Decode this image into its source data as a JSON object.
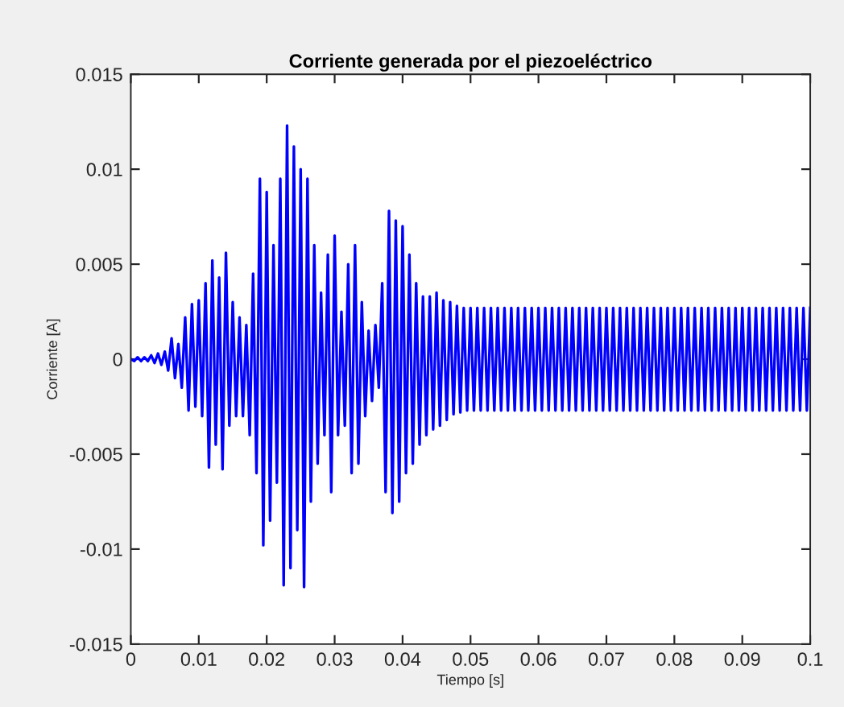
{
  "chart_data": {
    "type": "line",
    "title": "Corriente generada por el piezoeléctrico",
    "xlabel": "Tiempo [s]",
    "ylabel": "Corriente [A]",
    "xlim": [
      0,
      0.1
    ],
    "ylim": [
      -0.015,
      0.015
    ],
    "xticks": [
      0,
      0.01,
      0.02,
      0.03,
      0.04,
      0.05,
      0.06,
      0.07,
      0.08,
      0.09,
      0.1
    ],
    "yticks": [
      -0.015,
      -0.01,
      -0.005,
      0,
      0.005,
      0.01,
      0.015
    ],
    "grid": false,
    "marker": "none",
    "line_style": "solid",
    "series": [
      {
        "color": "#0000ff",
        "x": [
          0,
          0.0005,
          0.001,
          0.0015,
          0.002,
          0.0025,
          0.003,
          0.0035,
          0.004,
          0.0045,
          0.005,
          0.0055,
          0.006,
          0.0065,
          0.007,
          0.0075,
          0.008,
          0.0085,
          0.009,
          0.0095,
          0.01,
          0.0105,
          0.011,
          0.0115,
          0.012,
          0.0125,
          0.013,
          0.0135,
          0.014,
          0.0145,
          0.015,
          0.0155,
          0.016,
          0.0165,
          0.017,
          0.0175,
          0.018,
          0.0185,
          0.019,
          0.0195,
          0.02,
          0.0205,
          0.021,
          0.0215,
          0.022,
          0.0225,
          0.023,
          0.0235,
          0.024,
          0.0245,
          0.025,
          0.0255,
          0.026,
          0.0265,
          0.027,
          0.0275,
          0.028,
          0.0285,
          0.029,
          0.0295,
          0.03,
          0.0305,
          0.031,
          0.0315,
          0.032,
          0.0325,
          0.033,
          0.0335,
          0.034,
          0.0345,
          0.035,
          0.0355,
          0.036,
          0.0365,
          0.037,
          0.0375,
          0.038,
          0.0385,
          0.039,
          0.0395,
          0.04,
          0.0405,
          0.041,
          0.0415,
          0.042,
          0.0425,
          0.043,
          0.0435,
          0.044,
          0.0445,
          0.045,
          0.0455,
          0.046,
          0.0465,
          0.047,
          0.0475,
          0.048,
          0.0485,
          0.049,
          0.0495,
          0.05,
          0.0505,
          0.051,
          0.0515,
          0.052,
          0.0525,
          0.053,
          0.0535,
          0.054,
          0.0545,
          0.055,
          0.0555,
          0.056,
          0.0565,
          0.057,
          0.0575,
          0.058,
          0.0585,
          0.059,
          0.0595,
          0.06,
          0.0605,
          0.061,
          0.0615,
          0.062,
          0.0625,
          0.063,
          0.0635,
          0.064,
          0.0645,
          0.065,
          0.0655,
          0.066,
          0.0665,
          0.067,
          0.0675,
          0.068,
          0.0685,
          0.069,
          0.0695,
          0.07,
          0.0705,
          0.071,
          0.0715,
          0.072,
          0.0725,
          0.073,
          0.0735,
          0.074,
          0.0745,
          0.075,
          0.0755,
          0.076,
          0.0765,
          0.077,
          0.0775,
          0.078,
          0.0785,
          0.079,
          0.0795,
          0.08,
          0.0805,
          0.081,
          0.0815,
          0.082,
          0.0825,
          0.083,
          0.0835,
          0.084,
          0.0845,
          0.085,
          0.0855,
          0.086,
          0.0865,
          0.087,
          0.0875,
          0.088,
          0.0885,
          0.089,
          0.0895,
          0.09,
          0.0905,
          0.091,
          0.0915,
          0.092,
          0.0925,
          0.093,
          0.0935,
          0.094,
          0.0945,
          0.095,
          0.0955,
          0.096,
          0.0965,
          0.097,
          0.0975,
          0.098,
          0.0985,
          0.099,
          0.0995,
          0.1
        ],
        "values": [
          0,
          -0.0001,
          0.0001,
          -0.0001,
          0.0001,
          -0.0001,
          0.0002,
          -0.0002,
          0.0003,
          -0.0003,
          0.0004,
          -0.0006,
          0.0011,
          -0.001,
          0.0008,
          -0.0015,
          0.0022,
          -0.0027,
          0.0029,
          -0.0025,
          0.0031,
          -0.003,
          0.004,
          -0.0057,
          0.0052,
          -0.0045,
          0.0043,
          -0.0058,
          0.0056,
          -0.0035,
          0.003,
          -0.003,
          0.0022,
          -0.003,
          0.0018,
          -0.004,
          0.0045,
          -0.006,
          0.0095,
          -0.0098,
          0.0088,
          -0.0085,
          0.006,
          -0.0065,
          0.0095,
          -0.0119,
          0.0123,
          -0.011,
          0.0112,
          -0.009,
          0.01,
          -0.012,
          0.0095,
          -0.0075,
          0.006,
          -0.0055,
          0.0035,
          -0.004,
          0.0055,
          -0.007,
          0.0065,
          -0.004,
          0.0025,
          -0.0035,
          0.005,
          -0.006,
          0.006,
          -0.0055,
          0.003,
          -0.003,
          0.0015,
          -0.0022,
          0.0018,
          -0.0015,
          0.004,
          -0.007,
          0.0078,
          -0.0081,
          0.0073,
          -0.0075,
          0.007,
          -0.006,
          0.0055,
          -0.0055,
          0.004,
          -0.0045,
          0.0033,
          -0.004,
          0.0033,
          -0.0037,
          0.0035,
          -0.0035,
          0.0031,
          -0.0032,
          0.003,
          -0.0029,
          0.0028,
          -0.0028,
          0.0027,
          -0.0027,
          0.0027,
          -0.0027,
          0.0027,
          -0.0027,
          0.0027,
          -0.0027,
          0.0027,
          -0.0027,
          0.0027,
          -0.0027,
          0.0027,
          -0.0027,
          0.0027,
          -0.0027,
          0.0027,
          -0.0027,
          0.0027,
          -0.0027,
          0.0027,
          -0.0027,
          0.0027,
          -0.0027,
          0.0027,
          -0.0027,
          0.0027,
          -0.0027,
          0.0027,
          -0.0027,
          0.0027,
          -0.0027,
          0.0027,
          -0.0027,
          0.0027,
          -0.0027,
          0.0027,
          -0.0027,
          0.0027,
          -0.0027,
          0.0027,
          -0.0027,
          0.0027,
          -0.0027,
          0.0027,
          -0.0027,
          0.0027,
          -0.0027,
          0.0027,
          -0.0027,
          0.0027,
          -0.0027,
          0.0027,
          -0.0027,
          0.0027,
          -0.0027,
          0.0027,
          -0.0027,
          0.0027,
          -0.0027,
          0.0027,
          -0.0027,
          0.0027,
          -0.0027,
          0.0027,
          -0.0027,
          0.0027,
          -0.0027,
          0.0027,
          -0.0027,
          0.0027,
          -0.0027,
          0.0027,
          -0.0027,
          0.0027,
          -0.0027,
          0.0027,
          -0.0027,
          0.0027,
          -0.0027,
          0.0027,
          -0.0027,
          0.0027,
          -0.0027,
          0.0027,
          -0.0027,
          0.0027,
          -0.0027,
          0.0027,
          -0.0027,
          0.0027,
          -0.0027,
          0.0027,
          -0.0027,
          0.0027,
          -0.0027,
          0.0027,
          -0.0027,
          0.0027,
          -0.0027,
          0.0027,
          -0.0027,
          0.0027
        ]
      }
    ]
  }
}
